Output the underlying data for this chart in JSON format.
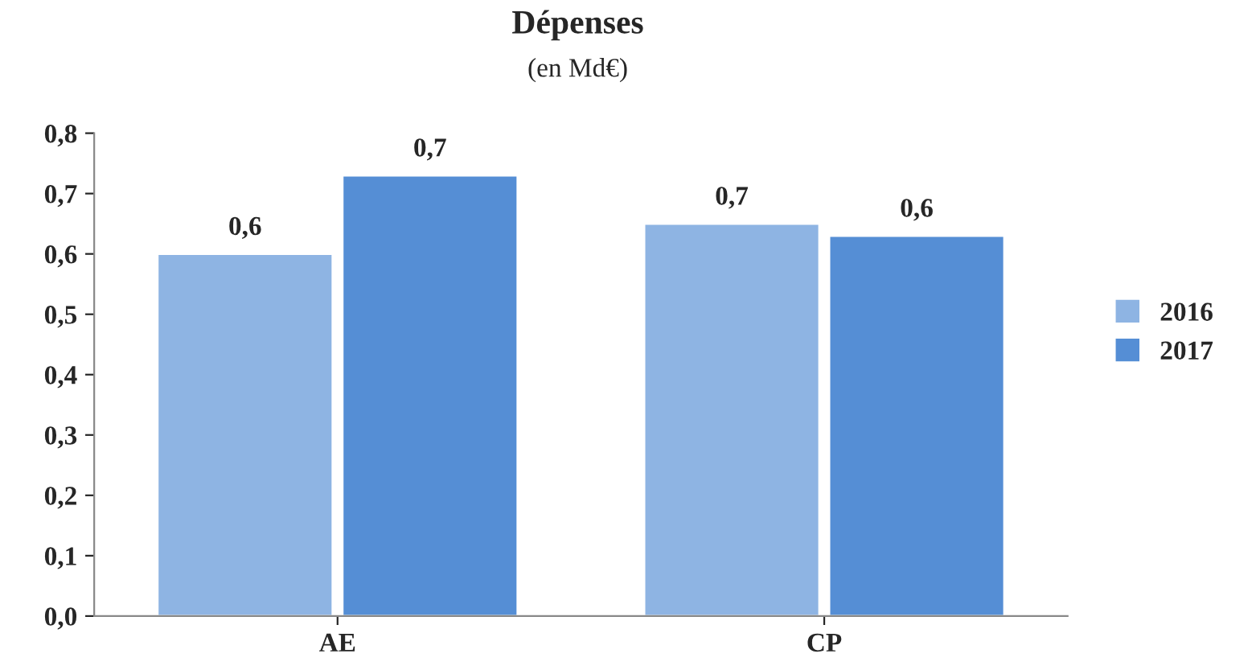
{
  "chart_data": {
    "type": "bar",
    "title": "Dépenses",
    "subtitle": "(en Md€)",
    "categories": [
      "AE",
      "CP"
    ],
    "series": [
      {
        "name": "2016",
        "color": "#8eb4e3",
        "values": [
          0.6,
          0.65
        ],
        "value_labels": [
          "0,6",
          "0,7"
        ]
      },
      {
        "name": "2017",
        "color": "#558ed5",
        "values": [
          0.73,
          0.63
        ],
        "value_labels": [
          "0,7",
          "0,6"
        ]
      }
    ],
    "ylim": [
      0,
      0.8
    ],
    "yticks": [
      {
        "value": 0,
        "label": "0,0"
      },
      {
        "value": 0.1,
        "label": "0,1"
      },
      {
        "value": 0.2,
        "label": "0,2"
      },
      {
        "value": 0.3,
        "label": "0,3"
      },
      {
        "value": 0.4,
        "label": "0,4"
      },
      {
        "value": 0.5,
        "label": "0,5"
      },
      {
        "value": 0.6,
        "label": "0,6"
      },
      {
        "value": 0.7,
        "label": "0,7"
      },
      {
        "value": 0.8,
        "label": "0,8"
      }
    ],
    "grid": false,
    "legend": "right"
  }
}
